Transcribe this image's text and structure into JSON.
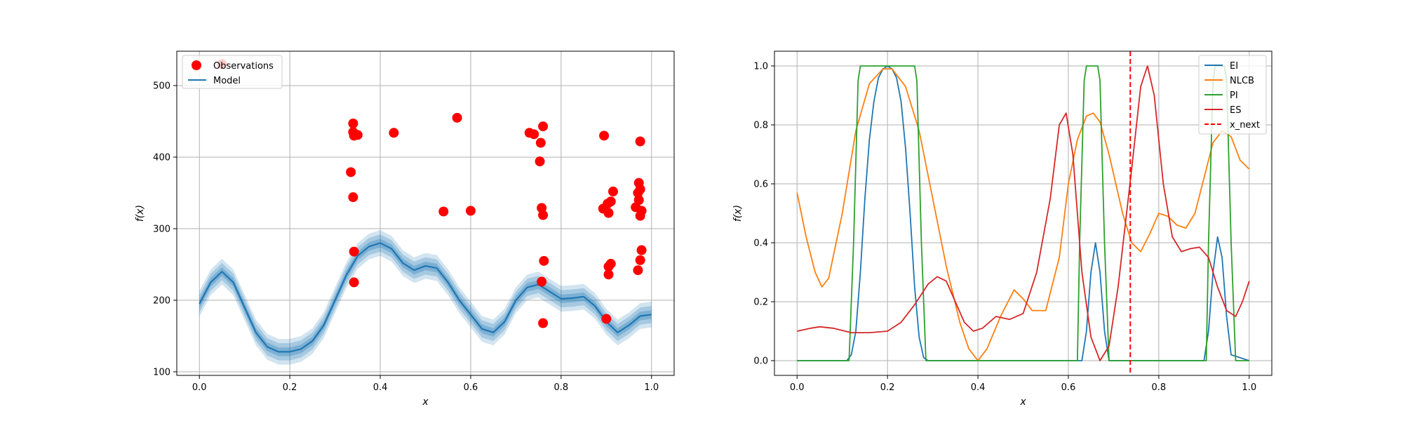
{
  "chart_data": [
    {
      "type": "line",
      "xlabel": "x",
      "ylabel": "f(x)",
      "xlim": [
        -0.05,
        1.05
      ],
      "ylim": [
        95,
        548
      ],
      "xticks": [
        "0.0",
        "0.2",
        "0.4",
        "0.6",
        "0.8",
        "1.0"
      ],
      "yticks": [
        "100",
        "200",
        "300",
        "400",
        "500"
      ],
      "grid": true,
      "legend_position": "top-left",
      "legend": [
        "Observations",
        "Model"
      ],
      "colors": {
        "observations": "#ff0000",
        "model": "#1f77b4"
      },
      "model_band_half_widths": [
        6,
        12,
        18
      ],
      "series": [
        {
          "name": "Observations",
          "style": "scatter",
          "points": [
            [
              0.05,
              530
            ],
            [
              0.34,
              447
            ],
            [
              0.34,
              435
            ],
            [
              0.342,
              430
            ],
            [
              0.35,
              431
            ],
            [
              0.335,
              379
            ],
            [
              0.34,
              344
            ],
            [
              0.342,
              268
            ],
            [
              0.342,
              225
            ],
            [
              0.43,
              434
            ],
            [
              0.57,
              455
            ],
            [
              0.54,
              324
            ],
            [
              0.6,
              325
            ],
            [
              0.73,
              434
            ],
            [
              0.74,
              432
            ],
            [
              0.76,
              443
            ],
            [
              0.755,
              420
            ],
            [
              0.753,
              394
            ],
            [
              0.757,
              329
            ],
            [
              0.76,
              319
            ],
            [
              0.762,
              255
            ],
            [
              0.757,
              226
            ],
            [
              0.76,
              168
            ],
            [
              0.895,
              430
            ],
            [
              0.893,
              328
            ],
            [
              0.903,
              335
            ],
            [
              0.905,
              322
            ],
            [
              0.91,
              338
            ],
            [
              0.915,
              352
            ],
            [
              0.905,
              247
            ],
            [
              0.91,
              251
            ],
            [
              0.905,
              236
            ],
            [
              0.9,
              174
            ],
            [
              0.975,
              422
            ],
            [
              0.972,
              364
            ],
            [
              0.975,
              355
            ],
            [
              0.97,
              350
            ],
            [
              0.972,
              340
            ],
            [
              0.965,
              330
            ],
            [
              0.978,
              325
            ],
            [
              0.975,
              318
            ],
            [
              0.978,
              270
            ],
            [
              0.975,
              256
            ],
            [
              0.97,
              242
            ]
          ]
        },
        {
          "name": "Model",
          "style": "line",
          "x": [
            0.0,
            0.025,
            0.05,
            0.075,
            0.1,
            0.125,
            0.15,
            0.175,
            0.2,
            0.225,
            0.25,
            0.275,
            0.3,
            0.325,
            0.35,
            0.375,
            0.4,
            0.425,
            0.45,
            0.475,
            0.5,
            0.525,
            0.55,
            0.575,
            0.6,
            0.625,
            0.65,
            0.675,
            0.7,
            0.725,
            0.75,
            0.775,
            0.8,
            0.825,
            0.85,
            0.875,
            0.9,
            0.925,
            0.95,
            0.975,
            1.0
          ],
          "y": [
            195,
            225,
            240,
            225,
            190,
            155,
            135,
            128,
            128,
            132,
            143,
            165,
            200,
            235,
            262,
            275,
            280,
            272,
            252,
            242,
            248,
            245,
            225,
            200,
            180,
            160,
            155,
            170,
            200,
            218,
            222,
            212,
            202,
            203,
            205,
            192,
            170,
            155,
            165,
            178,
            180
          ]
        }
      ]
    },
    {
      "type": "line",
      "xlabel": "x",
      "ylabel": "f(x)",
      "xlim": [
        -0.05,
        1.05
      ],
      "ylim": [
        -0.05,
        1.05
      ],
      "xticks": [
        "0.0",
        "0.2",
        "0.4",
        "0.6",
        "0.8",
        "1.0"
      ],
      "yticks": [
        "0.0",
        "0.2",
        "0.4",
        "0.6",
        "0.8",
        "1.0"
      ],
      "grid": true,
      "legend_position": "top-right",
      "legend": [
        "EI",
        "NLCB",
        "PI",
        "ES",
        "x_next"
      ],
      "series": [
        {
          "name": "EI",
          "color": "#1f77b4",
          "x": [
            0.0,
            0.11,
            0.12,
            0.13,
            0.14,
            0.15,
            0.16,
            0.17,
            0.18,
            0.19,
            0.2,
            0.21,
            0.22,
            0.23,
            0.24,
            0.25,
            0.26,
            0.27,
            0.28,
            0.29,
            0.63,
            0.64,
            0.65,
            0.66,
            0.67,
            0.68,
            0.69,
            0.9,
            0.91,
            0.92,
            0.93,
            0.94,
            0.95,
            0.96,
            1.0
          ],
          "y": [
            0,
            0,
            0.02,
            0.1,
            0.3,
            0.55,
            0.75,
            0.88,
            0.96,
            0.99,
            1.0,
            0.99,
            0.96,
            0.88,
            0.72,
            0.5,
            0.25,
            0.08,
            0.01,
            0,
            0,
            0.1,
            0.3,
            0.4,
            0.3,
            0.1,
            0,
            0,
            0.1,
            0.3,
            0.42,
            0.35,
            0.15,
            0.02,
            0
          ]
        },
        {
          "name": "NLCB",
          "color": "#ff7f0e",
          "x": [
            0.0,
            0.02,
            0.04,
            0.055,
            0.07,
            0.1,
            0.13,
            0.16,
            0.19,
            0.21,
            0.24,
            0.27,
            0.3,
            0.33,
            0.36,
            0.38,
            0.4,
            0.42,
            0.45,
            0.48,
            0.5,
            0.52,
            0.55,
            0.58,
            0.6,
            0.62,
            0.64,
            0.655,
            0.67,
            0.69,
            0.72,
            0.74,
            0.76,
            0.78,
            0.8,
            0.82,
            0.84,
            0.86,
            0.88,
            0.9,
            0.92,
            0.94,
            0.96,
            0.98,
            1.0
          ],
          "y": [
            0.57,
            0.42,
            0.3,
            0.25,
            0.28,
            0.5,
            0.78,
            0.94,
            0.99,
            0.99,
            0.93,
            0.78,
            0.55,
            0.32,
            0.13,
            0.04,
            0.0,
            0.04,
            0.15,
            0.24,
            0.21,
            0.17,
            0.17,
            0.35,
            0.6,
            0.75,
            0.83,
            0.84,
            0.81,
            0.7,
            0.5,
            0.4,
            0.37,
            0.43,
            0.5,
            0.49,
            0.46,
            0.45,
            0.5,
            0.62,
            0.74,
            0.78,
            0.76,
            0.68,
            0.65
          ]
        },
        {
          "name": "PI",
          "color": "#2ca02c",
          "x": [
            0.0,
            0.115,
            0.125,
            0.135,
            0.14,
            0.26,
            0.265,
            0.275,
            0.285,
            0.62,
            0.625,
            0.635,
            0.64,
            0.665,
            0.67,
            0.68,
            0.69,
            0.905,
            0.91,
            0.92,
            0.925,
            0.945,
            0.95,
            0.96,
            0.97,
            1.0
          ],
          "y": [
            0,
            0,
            0.4,
            0.95,
            1.0,
            1.0,
            0.95,
            0.4,
            0,
            0,
            0.4,
            0.95,
            1.0,
            1.0,
            0.95,
            0.4,
            0,
            0,
            0.4,
            0.95,
            1.0,
            1.0,
            0.95,
            0.4,
            0,
            0
          ]
        },
        {
          "name": "ES",
          "color": "#d62728",
          "x": [
            0.0,
            0.03,
            0.05,
            0.08,
            0.12,
            0.16,
            0.2,
            0.23,
            0.26,
            0.29,
            0.31,
            0.33,
            0.35,
            0.37,
            0.39,
            0.41,
            0.44,
            0.47,
            0.5,
            0.53,
            0.56,
            0.58,
            0.595,
            0.61,
            0.63,
            0.65,
            0.67,
            0.69,
            0.71,
            0.74,
            0.76,
            0.775,
            0.79,
            0.81,
            0.83,
            0.85,
            0.87,
            0.89,
            0.91,
            0.93,
            0.95,
            0.97,
            0.985,
            1.0
          ],
          "y": [
            0.1,
            0.11,
            0.115,
            0.11,
            0.095,
            0.095,
            0.1,
            0.13,
            0.19,
            0.26,
            0.285,
            0.27,
            0.2,
            0.13,
            0.1,
            0.11,
            0.15,
            0.14,
            0.16,
            0.3,
            0.55,
            0.8,
            0.84,
            0.7,
            0.3,
            0.08,
            0.0,
            0.05,
            0.25,
            0.65,
            0.93,
            1.0,
            0.9,
            0.6,
            0.42,
            0.37,
            0.38,
            0.385,
            0.35,
            0.25,
            0.17,
            0.15,
            0.2,
            0.27
          ]
        }
      ],
      "x_next": {
        "label": "x_next",
        "x": 0.737,
        "color": "#ff0000",
        "style": "dashed"
      }
    }
  ]
}
